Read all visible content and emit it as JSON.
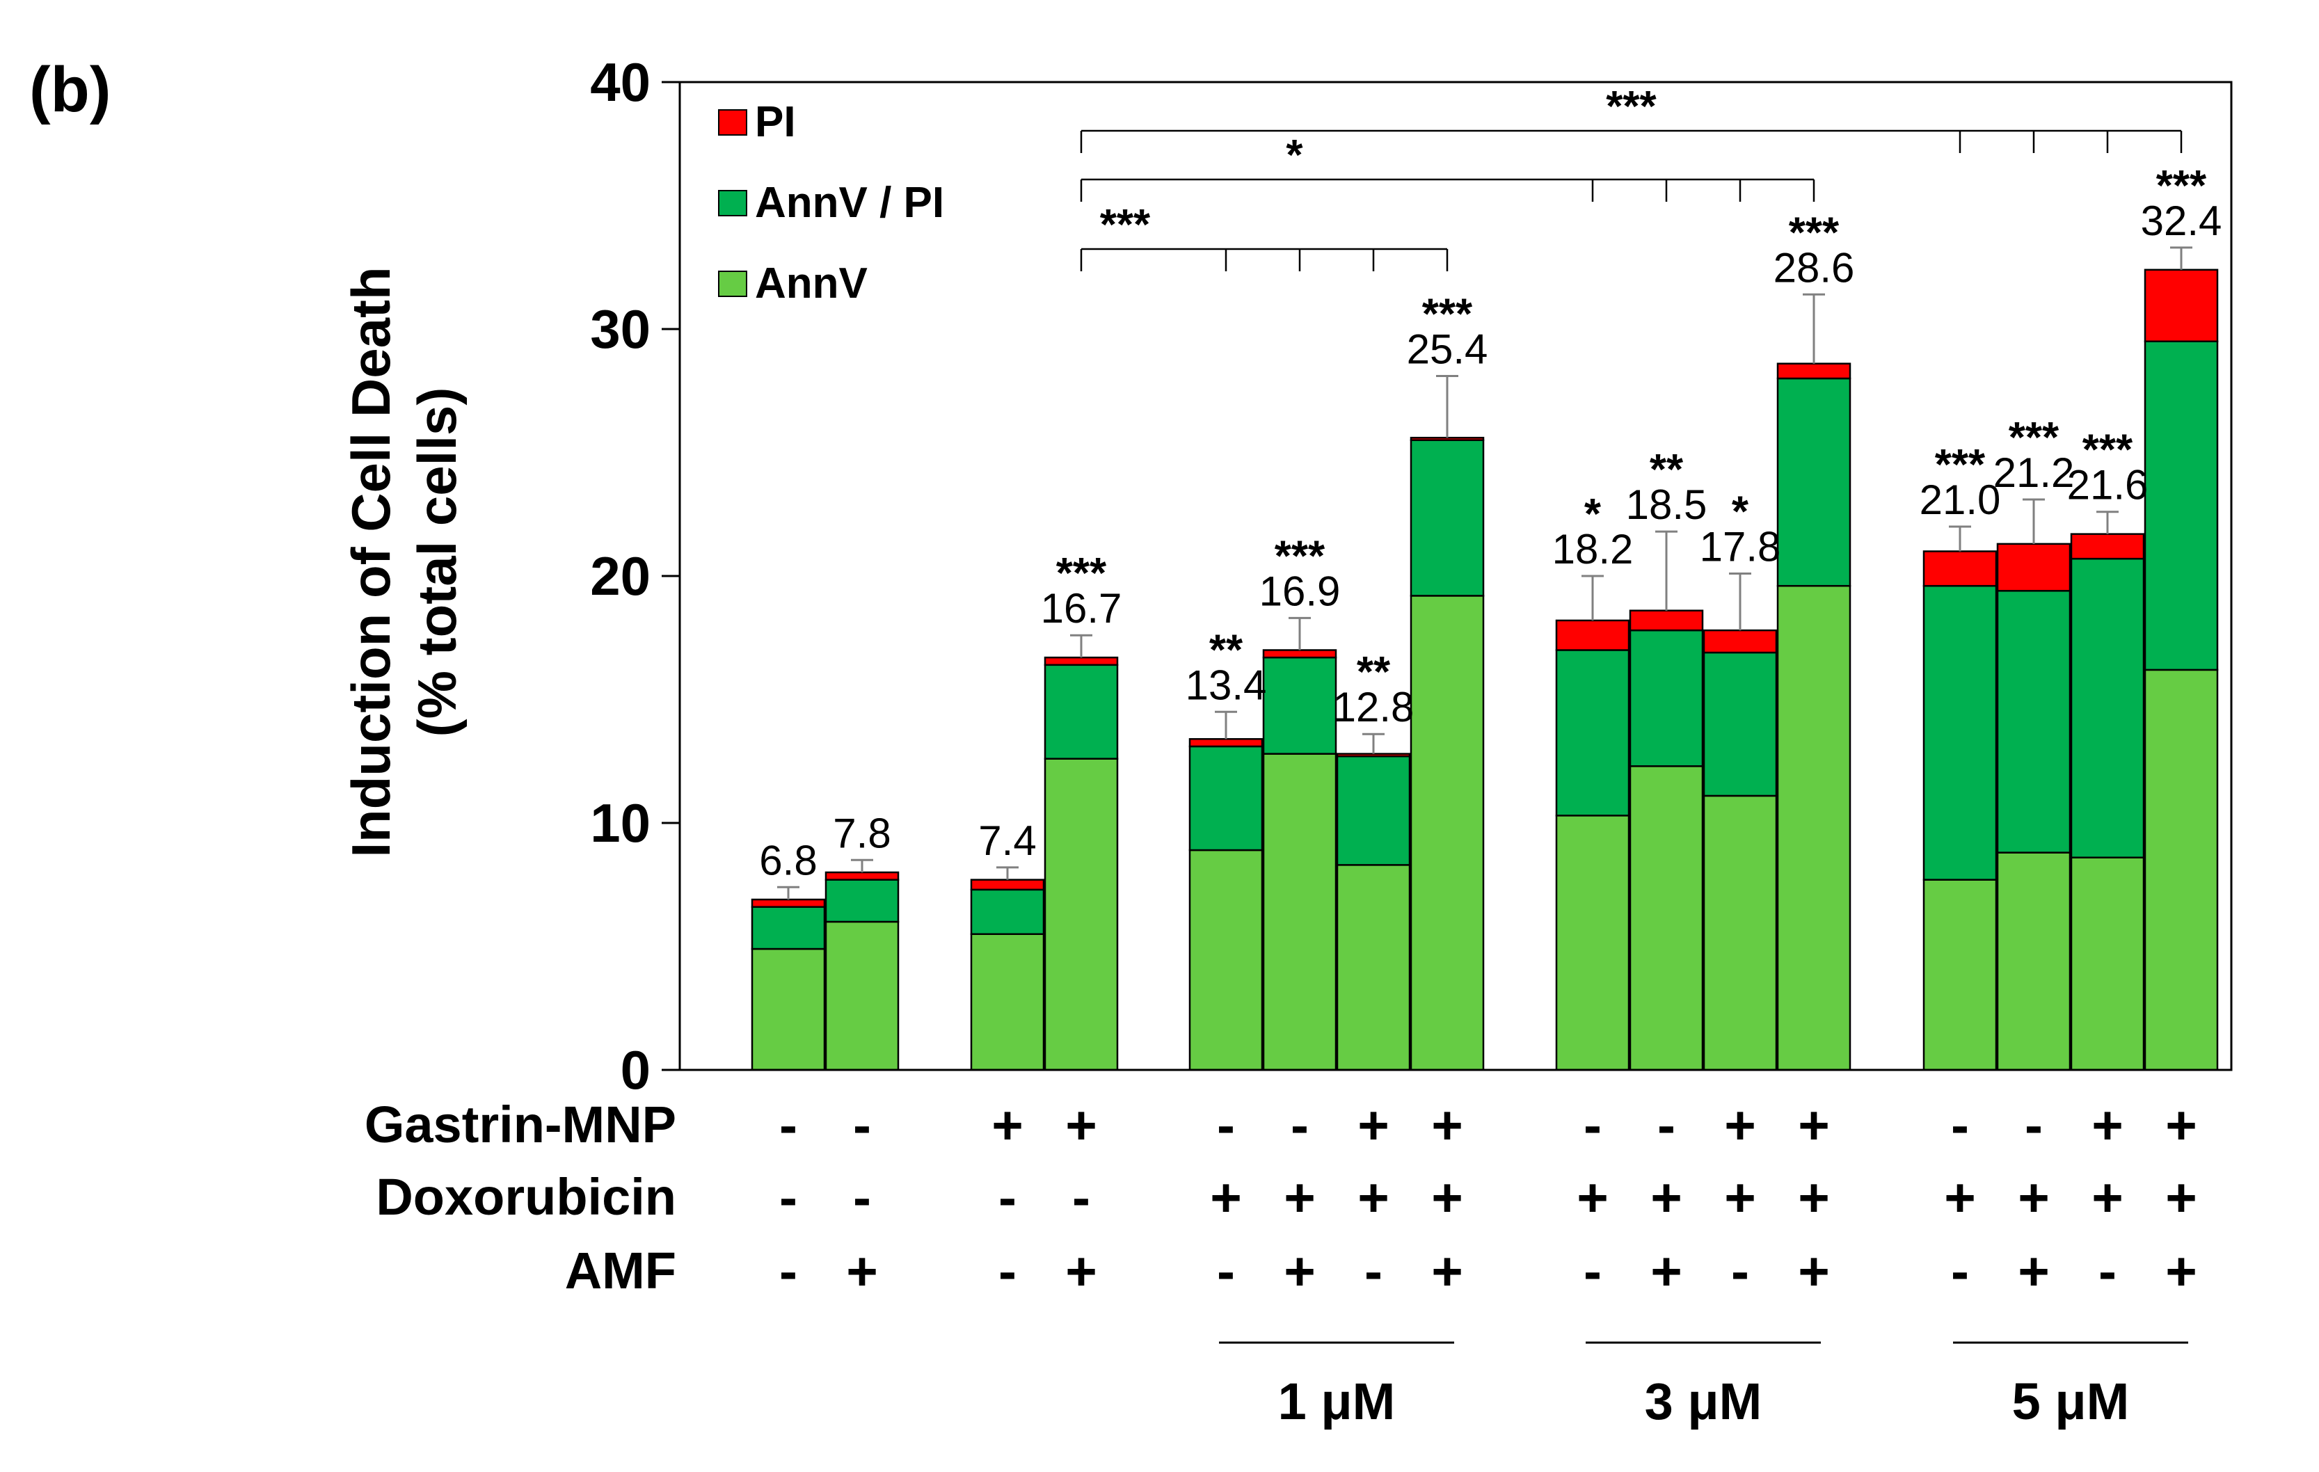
{
  "panel_label": "(b)",
  "chart_data": {
    "type": "bar",
    "stacked": true,
    "ylabel_line1": "Induction of Cell Death",
    "ylabel_line2": "(% total cells)",
    "ylim": [
      0,
      40
    ],
    "yticks": [
      "0",
      "10",
      "20",
      "30",
      "40"
    ],
    "legend": [
      {
        "name": "PI",
        "color": "#ff0000"
      },
      {
        "name": "AnnV / PI",
        "color": "#00b050"
      },
      {
        "name": "AnnV",
        "color": "#66cc44"
      }
    ],
    "colors": {
      "annv": "#66cc44",
      "annvpi": "#00b050",
      "pi": "#ff0000",
      "error": "#808080"
    },
    "bars": [
      {
        "group": 0,
        "annv": 4.9,
        "annvpi": 1.7,
        "pi": 0.3,
        "total": "6.8",
        "sig": "",
        "err": 0.5
      },
      {
        "group": 0,
        "annv": 6.0,
        "annvpi": 1.7,
        "pi": 0.3,
        "total": "7.8",
        "sig": "",
        "err": 0.5
      },
      {
        "group": 1,
        "annv": 5.5,
        "annvpi": 1.8,
        "pi": 0.4,
        "total": "7.4",
        "sig": "",
        "err": 0.5
      },
      {
        "group": 1,
        "annv": 12.6,
        "annvpi": 3.8,
        "pi": 0.3,
        "total": "16.7",
        "sig": "***",
        "err": 0.9
      },
      {
        "group": 2,
        "annv": 8.9,
        "annvpi": 4.2,
        "pi": 0.3,
        "total": "13.4",
        "sig": "**",
        "err": 1.1
      },
      {
        "group": 2,
        "annv": 12.8,
        "annvpi": 3.9,
        "pi": 0.3,
        "total": "16.9",
        "sig": "***",
        "err": 1.3
      },
      {
        "group": 2,
        "annv": 8.3,
        "annvpi": 4.4,
        "pi": 0.1,
        "total": "12.8",
        "sig": "**",
        "err": 0.8
      },
      {
        "group": 2,
        "annv": 19.2,
        "annvpi": 6.3,
        "pi": 0.1,
        "total": "25.4",
        "sig": "***",
        "err": 2.5
      },
      {
        "group": 3,
        "annv": 10.3,
        "annvpi": 6.7,
        "pi": 1.2,
        "total": "18.2",
        "sig": "*",
        "err": 1.8
      },
      {
        "group": 3,
        "annv": 12.3,
        "annvpi": 5.5,
        "pi": 0.8,
        "total": "18.5",
        "sig": "**",
        "err": 3.2
      },
      {
        "group": 3,
        "annv": 11.1,
        "annvpi": 5.8,
        "pi": 0.9,
        "total": "17.8",
        "sig": "*",
        "err": 2.3
      },
      {
        "group": 3,
        "annv": 19.6,
        "annvpi": 8.4,
        "pi": 0.6,
        "total": "28.6",
        "sig": "***",
        "err": 2.8
      },
      {
        "group": 4,
        "annv": 7.7,
        "annvpi": 11.9,
        "pi": 1.4,
        "total": "21.0",
        "sig": "***",
        "err": 1.0
      },
      {
        "group": 4,
        "annv": 8.8,
        "annvpi": 10.6,
        "pi": 1.9,
        "total": "21.2",
        "sig": "***",
        "err": 1.8
      },
      {
        "group": 4,
        "annv": 8.6,
        "annvpi": 12.1,
        "pi": 1.0,
        "total": "21.6",
        "sig": "***",
        "err": 0.9
      },
      {
        "group": 4,
        "annv": 16.2,
        "annvpi": 13.3,
        "pi": 2.9,
        "total": "32.4",
        "sig": "***",
        "err": 0.9
      }
    ],
    "brackets": [
      {
        "sig": "***",
        "from": 3,
        "to": 7
      },
      {
        "sig": "*",
        "from": 3,
        "to": 11
      },
      {
        "sig": "***",
        "from": 3,
        "to": 15
      }
    ],
    "conditions": [
      {
        "name": "Gastrin-MNP",
        "values": [
          "-",
          "-",
          "+",
          "+",
          "-",
          "-",
          "+",
          "+",
          "-",
          "-",
          "+",
          "+",
          "-",
          "-",
          "+",
          "+"
        ]
      },
      {
        "name": "Doxorubicin",
        "values": [
          "-",
          "-",
          "-",
          "-",
          "+",
          "+",
          "+",
          "+",
          "+",
          "+",
          "+",
          "+",
          "+",
          "+",
          "+",
          "+"
        ]
      },
      {
        "name": "AMF",
        "values": [
          "-",
          "+",
          "-",
          "+",
          "-",
          "+",
          "-",
          "+",
          "-",
          "+",
          "-",
          "+",
          "-",
          "+",
          "-",
          "+"
        ]
      }
    ],
    "dose_groups": [
      {
        "label": "1 μM",
        "group": 2
      },
      {
        "label": "3 μM",
        "group": 3
      },
      {
        "label": "5 μM",
        "group": 4
      }
    ]
  }
}
